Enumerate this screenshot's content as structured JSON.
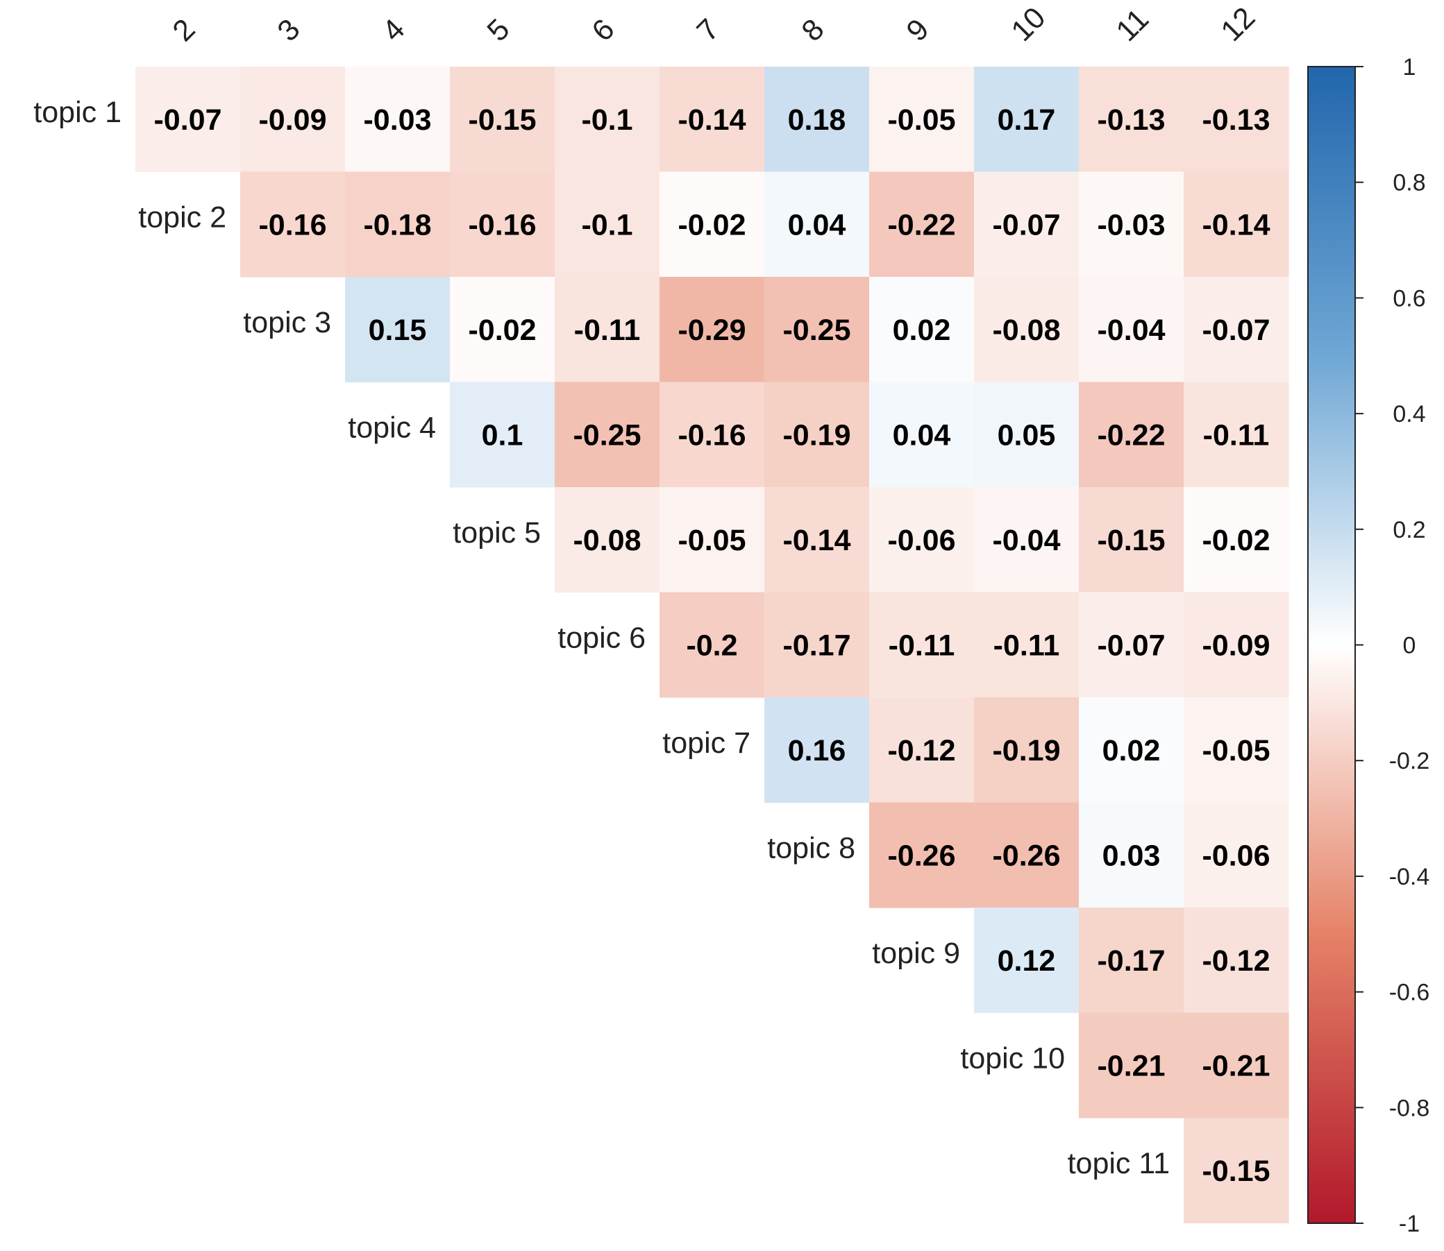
{
  "chart_data": {
    "type": "heatmap",
    "layout": "upper-triangular correlation matrix",
    "title": "",
    "row_labels": [
      "topic 1",
      "topic 2",
      "topic 3",
      "topic 4",
      "topic 5",
      "topic 6",
      "topic 7",
      "topic 8",
      "topic 9",
      "topic 10",
      "topic 11"
    ],
    "col_labels": [
      "2",
      "3",
      "4",
      "5",
      "6",
      "7",
      "8",
      "9",
      "10",
      "11",
      "12"
    ],
    "values": [
      [
        -0.07,
        -0.09,
        -0.03,
        -0.15,
        -0.1,
        -0.14,
        0.18,
        -0.05,
        0.17,
        -0.13,
        -0.13
      ],
      [
        null,
        -0.16,
        -0.18,
        -0.16,
        -0.1,
        -0.02,
        0.04,
        -0.22,
        -0.07,
        -0.03,
        -0.14
      ],
      [
        null,
        null,
        0.15,
        -0.02,
        -0.11,
        -0.29,
        -0.25,
        0.02,
        -0.08,
        -0.04,
        -0.07
      ],
      [
        null,
        null,
        null,
        0.1,
        -0.25,
        -0.16,
        -0.19,
        0.04,
        0.05,
        -0.22,
        -0.11
      ],
      [
        null,
        null,
        null,
        null,
        -0.08,
        -0.05,
        -0.14,
        -0.06,
        -0.04,
        -0.15,
        -0.02
      ],
      [
        null,
        null,
        null,
        null,
        null,
        -0.2,
        -0.17,
        -0.11,
        -0.11,
        -0.07,
        -0.09
      ],
      [
        null,
        null,
        null,
        null,
        null,
        null,
        0.16,
        -0.12,
        -0.19,
        0.02,
        -0.05
      ],
      [
        null,
        null,
        null,
        null,
        null,
        null,
        null,
        -0.26,
        -0.26,
        0.03,
        -0.06
      ],
      [
        null,
        null,
        null,
        null,
        null,
        null,
        null,
        null,
        0.12,
        -0.17,
        -0.12
      ],
      [
        null,
        null,
        null,
        null,
        null,
        null,
        null,
        null,
        null,
        -0.21,
        -0.21
      ],
      [
        null,
        null,
        null,
        null,
        null,
        null,
        null,
        null,
        null,
        null,
        -0.15
      ]
    ],
    "color_scale": {
      "min": -1,
      "max": 1,
      "stops": [
        {
          "value": -1,
          "color": "#B2182B"
        },
        {
          "value": -0.5,
          "color": "#E58267"
        },
        {
          "value": 0,
          "color": "#FFFFFF"
        },
        {
          "value": 0.5,
          "color": "#6FA7D5"
        },
        {
          "value": 1,
          "color": "#2166AC"
        }
      ],
      "ticks": [
        "1",
        "0.8",
        "0.6",
        "0.4",
        "0.2",
        "0",
        "-0.2",
        "-0.4",
        "-0.6",
        "-0.8",
        "-1"
      ]
    },
    "legend_position": "right",
    "grid": false
  }
}
